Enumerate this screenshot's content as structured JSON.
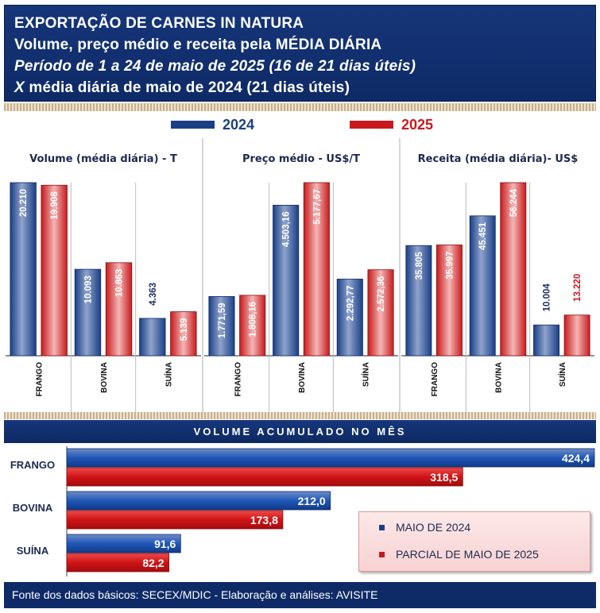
{
  "header": {
    "line1": "EXPORTAÇÃO DE CARNES IN NATURA",
    "line2": "Volume, preço médio e receita pela MÉDIA DIÁRIA",
    "line3": "Período de 1 a 24 de maio de 2025 (16 de 21 dias úteis)",
    "line4_x": "X",
    "line4_rest": " média diária de maio de 2024 (21 dias úteis)"
  },
  "top_legend": [
    {
      "label": "2024",
      "color": "#1a3f86"
    },
    {
      "label": "2025",
      "color": "#c81a1c"
    }
  ],
  "colors": {
    "blue": "#1a3f86",
    "red": "#c81a1c",
    "navy": "#0f2b67"
  },
  "chart_data": [
    {
      "type": "bar",
      "title": "Volume (média diária) - T",
      "categories": [
        "FRANGO",
        "BOVINA",
        "SUÍNA"
      ],
      "series": [
        {
          "name": "2024",
          "values": [
            20210,
            10093,
            4363
          ],
          "labels": [
            "20.210",
            "10.093",
            "4.363"
          ]
        },
        {
          "name": "2025",
          "values": [
            19908,
            10863,
            5139
          ],
          "labels": [
            "19.908",
            "10.863",
            "5.139"
          ]
        }
      ]
    },
    {
      "type": "bar",
      "title": "Preço médio - US$/T",
      "categories": [
        "FRANGO",
        "BOVINA",
        "SUÍNA"
      ],
      "series": [
        {
          "name": "2024",
          "values": [
            1771.59,
            4503.16,
            2292.77
          ],
          "labels": [
            "1.771,59",
            "4.503,16",
            "2.292,77"
          ]
        },
        {
          "name": "2025",
          "values": [
            1808.16,
            5177.67,
            2572.36
          ],
          "labels": [
            "1.808,16",
            "5.177,67",
            "2.572,36"
          ]
        }
      ]
    },
    {
      "type": "bar",
      "title": "Receita (média diária)- US$",
      "categories": [
        "FRANGO",
        "BOVINA",
        "SUÍNA"
      ],
      "series": [
        {
          "name": "2024",
          "values": [
            35805,
            45451,
            10004
          ],
          "labels": [
            "35.805",
            "45.451",
            "10.004"
          ]
        },
        {
          "name": "2025",
          "values": [
            35997,
            56244,
            13220
          ],
          "labels": [
            "35.997",
            "56.244",
            "13.220"
          ]
        }
      ]
    },
    {
      "type": "bar",
      "orientation": "horizontal",
      "title": "VOLUME ACUMULADO NO MÊS",
      "categories": [
        "FRANGO",
        "BOVINA",
        "SUÍNA"
      ],
      "series": [
        {
          "name": "MAIO DE 2024",
          "values": [
            424.4,
            212.0,
            91.6
          ],
          "labels": [
            "424,4",
            "212,0",
            "91,6"
          ]
        },
        {
          "name": "PARCIAL DE MAIO DE 2025",
          "values": [
            318.5,
            173.8,
            82.2
          ],
          "labels": [
            "318,5",
            "173,8",
            "82,2"
          ]
        }
      ]
    }
  ],
  "footer": "Fonte dos dados básicos: SECEX/MDIC - Elaboração e análises: AVISITE"
}
